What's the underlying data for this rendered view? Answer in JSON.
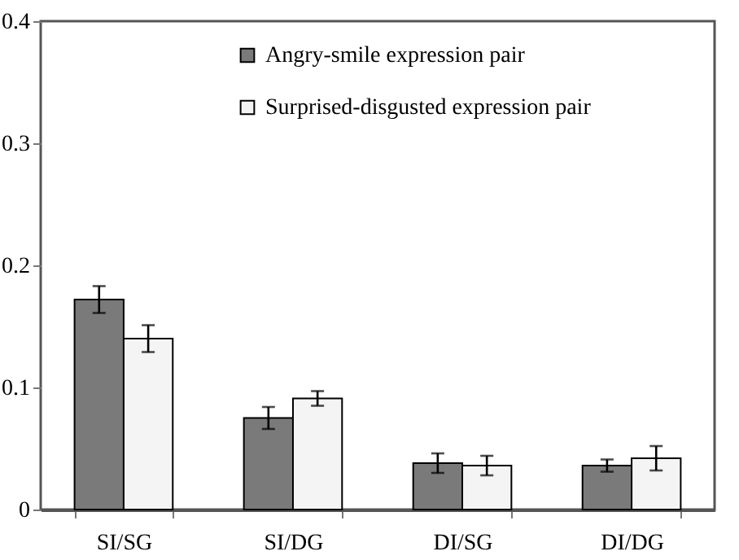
{
  "chart_data": {
    "type": "bar",
    "categories": [
      "SI/SG",
      "SI/DG",
      "DI/SG",
      "DI/DG"
    ],
    "series": [
      {
        "name": "Angry-smile expression pair",
        "color": "#7a7a7a",
        "values": [
          0.172,
          0.075,
          0.038,
          0.036
        ],
        "errors": [
          0.011,
          0.009,
          0.008,
          0.005
        ]
      },
      {
        "name": "Surprised-disgusted expression pair",
        "color": "#f4f4f4",
        "values": [
          0.14,
          0.091,
          0.036,
          0.042
        ],
        "errors": [
          0.011,
          0.006,
          0.008,
          0.01
        ]
      }
    ],
    "ylim": [
      0,
      0.4
    ],
    "yticks": [
      0,
      0.1,
      0.2,
      0.3,
      0.4
    ],
    "grid": false,
    "legend": "top"
  }
}
